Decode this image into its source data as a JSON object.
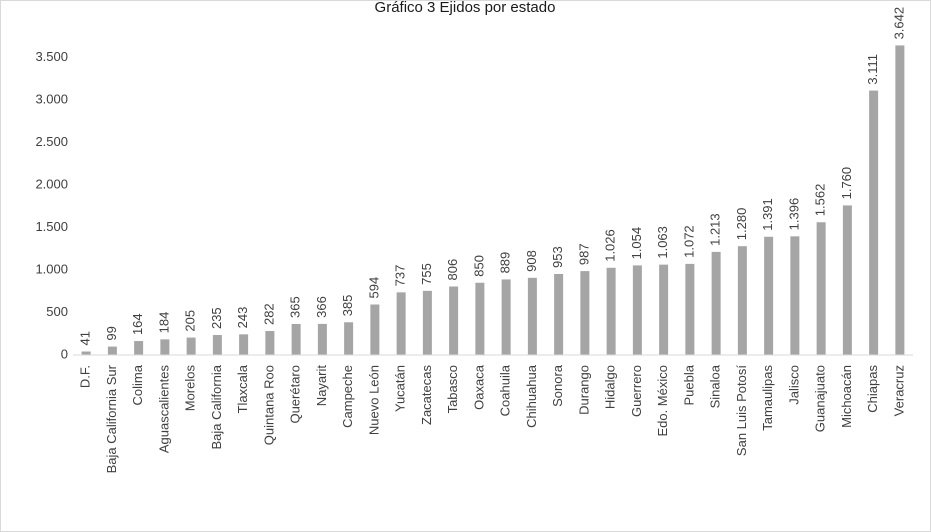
{
  "chart_data": {
    "type": "bar",
    "title": "Gráfico 3 Ejidos por estado",
    "categories": [
      "D.F.",
      "Baja California Sur",
      "Colima",
      "Aguascalientes",
      "Morelos",
      "Baja California",
      "Tlaxcala",
      "Quintana Roo",
      "Querétaro",
      "Nayarit",
      "Campeche",
      "Nuevo León",
      "Yucatán",
      "Zacatecas",
      "Tabasco",
      "Oaxaca",
      "Coahuila",
      "Chihuahua",
      "Sonora",
      "Durango",
      "Hidalgo",
      "Guerrero",
      "Edo. México",
      "Puebla",
      "Sinaloa",
      "San Luis Potosí",
      "Tamaulipas",
      "Jalisco",
      "Guanajuato",
      "Michoacán",
      "Chiapas",
      "Veracruz"
    ],
    "values": [
      41,
      99,
      164,
      184,
      205,
      235,
      243,
      282,
      365,
      366,
      385,
      594,
      737,
      755,
      806,
      850,
      889,
      908,
      953,
      987,
      1026,
      1054,
      1063,
      1072,
      1213,
      1280,
      1391,
      1396,
      1562,
      1760,
      3111,
      3642
    ],
    "value_labels": [
      "41",
      "99",
      "164",
      "184",
      "205",
      "235",
      "243",
      "282",
      "365",
      "366",
      "385",
      "594",
      "737",
      "755",
      "806",
      "850",
      "889",
      "908",
      "953",
      "987",
      "1.026",
      "1.054",
      "1.063",
      "1.072",
      "1.213",
      "1.280",
      "1.391",
      "1.396",
      "1.562",
      "1.760",
      "3.111",
      "3.642"
    ],
    "color": "#a5a5a5",
    "ylim": [
      0,
      4000
    ],
    "yticks": [
      0,
      500,
      {
        "value": 1000,
        "label": "1.000"
      },
      {
        "value": 1500,
        "label": "1.500"
      },
      {
        "value": 2000,
        "label": "2.000"
      },
      {
        "value": 2500,
        "label": "2.500"
      },
      {
        "value": 3000,
        "label": "3.000"
      },
      {
        "value": 3500,
        "label": "3.500"
      }
    ],
    "grid": false
  }
}
